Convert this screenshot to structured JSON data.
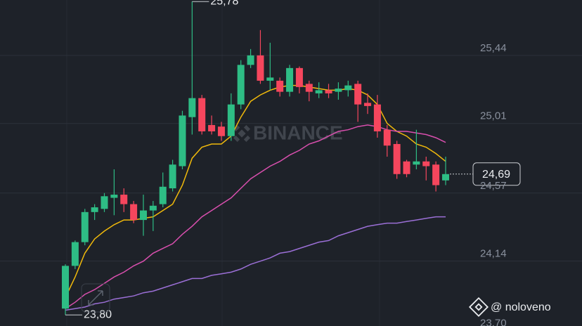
{
  "chart_data": {
    "type": "candlestick",
    "open": [
      23.84,
      24.11,
      24.26,
      24.45,
      24.47,
      24.54,
      24.56,
      24.5,
      24.4,
      24.46,
      24.5,
      24.6,
      24.74,
      25.05,
      25.17,
      25.0,
      24.99,
      24.93,
      25.13,
      25.38,
      25.44,
      25.28,
      25.28,
      25.21,
      25.36,
      25.26,
      25.2,
      25.22,
      25.21,
      25.22,
      25.26,
      25.14,
      25.13,
      24.97,
      24.88,
      24.77,
      24.75,
      24.77,
      24.75,
      24.65
    ],
    "high": [
      24.12,
      24.27,
      24.47,
      24.5,
      24.57,
      24.72,
      24.6,
      24.52,
      24.56,
      24.52,
      24.7,
      24.78,
      25.09,
      25.78,
      25.19,
      25.06,
      25.02,
      25.2,
      25.41,
      25.48,
      25.6,
      25.52,
      25.3,
      25.38,
      25.37,
      25.28,
      25.27,
      25.26,
      25.27,
      25.28,
      25.28,
      25.2,
      25.19,
      25.0,
      24.9,
      24.78,
      24.97,
      24.8,
      24.77,
      24.8
    ],
    "low": [
      23.8,
      24.09,
      24.24,
      24.4,
      24.45,
      24.43,
      24.45,
      24.38,
      24.3,
      24.33,
      24.48,
      24.58,
      24.72,
      24.94,
      24.94,
      24.94,
      24.9,
      24.9,
      25.1,
      25.36,
      25.26,
      25.22,
      25.18,
      25.18,
      25.2,
      25.15,
      25.17,
      25.17,
      25.16,
      25.18,
      25.02,
      25.07,
      24.92,
      24.8,
      24.66,
      24.67,
      24.72,
      24.65,
      24.58,
      24.62
    ],
    "close": [
      24.11,
      24.26,
      24.45,
      24.48,
      24.55,
      24.56,
      24.5,
      24.4,
      24.46,
      24.49,
      24.61,
      24.75,
      25.06,
      25.17,
      24.96,
      24.96,
      24.93,
      25.13,
      25.38,
      25.44,
      25.28,
      25.3,
      25.21,
      25.36,
      25.24,
      25.21,
      25.22,
      25.2,
      25.23,
      25.25,
      25.13,
      25.12,
      24.96,
      24.87,
      24.69,
      24.69,
      24.77,
      24.74,
      24.62,
      24.69
    ],
    "up_color": "#2ebd85",
    "down_color": "#f6465d",
    "overlays": [
      {
        "color": "#f0b90b",
        "values": [
          23.91,
          24.04,
          24.19,
          24.28,
          24.33,
          24.37,
          24.4,
          24.4,
          24.41,
          24.42,
          24.46,
          24.5,
          24.62,
          24.79,
          24.86,
          24.88,
          24.88,
          24.93,
          25.05,
          25.15,
          25.19,
          25.22,
          25.24,
          25.25,
          25.25,
          25.24,
          25.23,
          25.22,
          25.22,
          25.23,
          25.22,
          25.19,
          25.13,
          25.01,
          24.96,
          24.93,
          24.88,
          24.86,
          24.82,
          24.77
        ]
      },
      {
        "color": "#d94fae",
        "values": [
          23.84,
          23.88,
          23.93,
          23.96,
          24.0,
          24.04,
          24.07,
          24.11,
          24.14,
          24.19,
          24.22,
          24.25,
          24.31,
          24.36,
          24.42,
          24.46,
          24.5,
          24.54,
          24.6,
          24.66,
          24.7,
          24.74,
          24.77,
          24.81,
          24.84,
          24.88,
          24.9,
          24.93,
          24.96,
          24.97,
          24.99,
          25.0,
          24.99,
          24.97,
          24.96,
          24.96,
          24.95,
          24.94,
          24.92,
          24.89
        ]
      },
      {
        "color": "#9b6fd6",
        "values": [
          23.83,
          23.84,
          23.85,
          23.87,
          23.88,
          23.9,
          23.91,
          23.92,
          23.94,
          23.95,
          23.97,
          23.99,
          24.01,
          24.03,
          24.03,
          24.05,
          24.06,
          24.07,
          24.09,
          24.12,
          24.14,
          24.16,
          24.19,
          24.2,
          24.22,
          24.24,
          24.26,
          24.27,
          24.3,
          24.32,
          24.34,
          24.36,
          24.37,
          24.38,
          24.38,
          24.39,
          24.4,
          24.41,
          24.42,
          24.42
        ]
      }
    ],
    "ylim": [
      23.73,
      25.79
    ],
    "yticks": [
      {
        "value": 25.44,
        "label": "25,44"
      },
      {
        "value": 25.01,
        "label": "25,01"
      },
      {
        "value": 24.57,
        "label": "24,57"
      },
      {
        "value": 24.14,
        "label": "24,14"
      },
      {
        "value": 23.7,
        "label": "23,70"
      }
    ],
    "grid": true,
    "high_label": {
      "value": 25.78,
      "label": "25,78"
    },
    "low_label": {
      "value": 23.8,
      "label": "23,80"
    },
    "last_price": {
      "value": 24.69,
      "label": "24,69"
    },
    "watermark": "BINANCE",
    "credit": "@ noloveno"
  }
}
